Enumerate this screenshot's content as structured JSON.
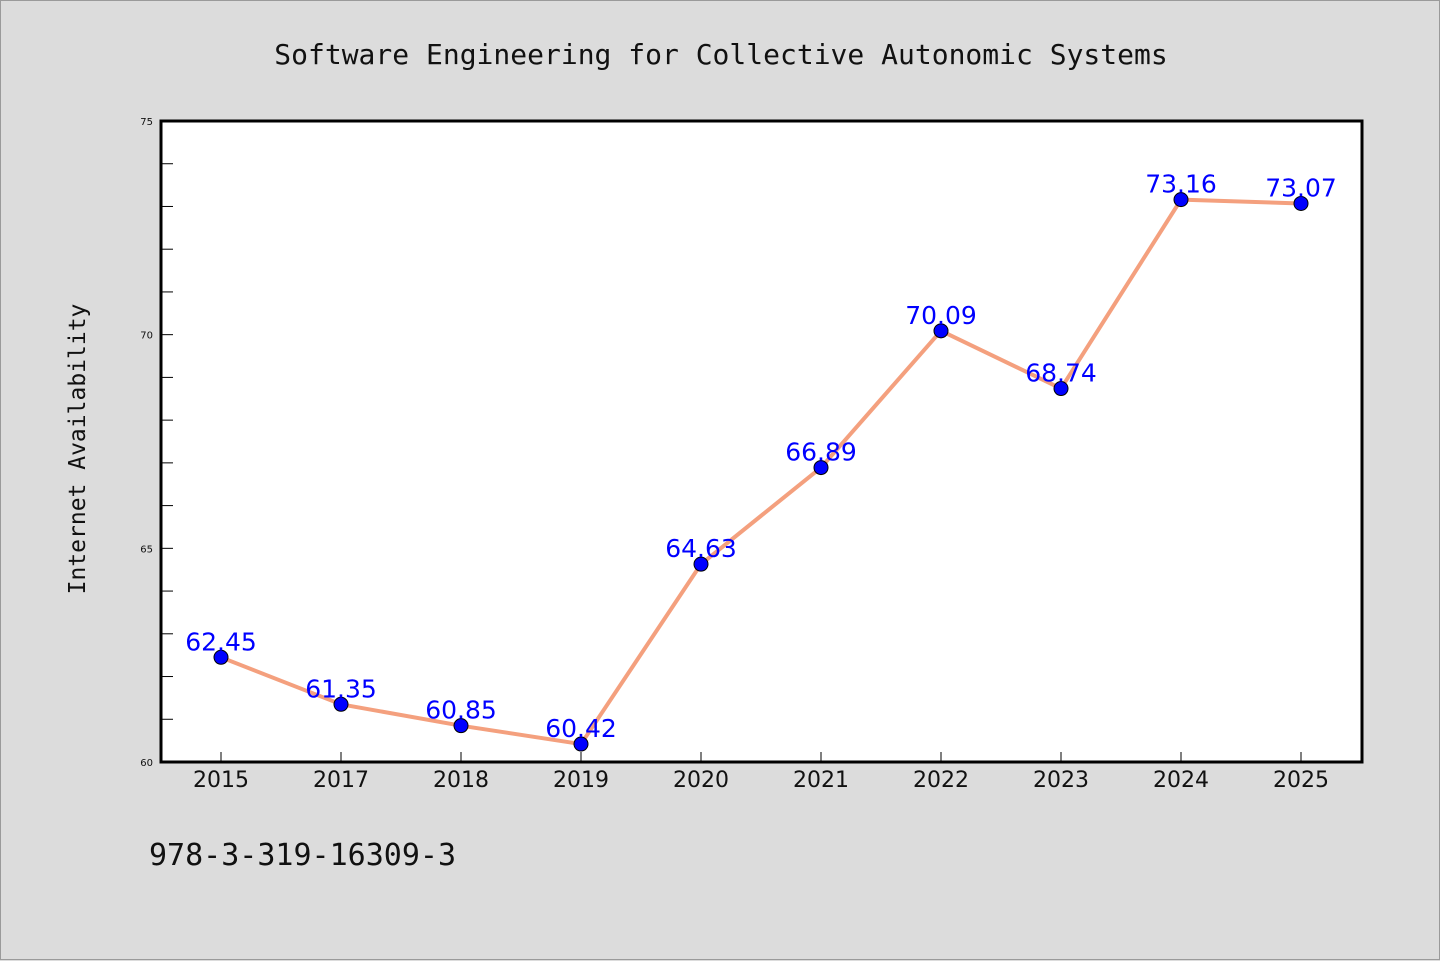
{
  "chart_data": {
    "type": "line",
    "title": "Software Engineering for Collective Autonomic Systems",
    "xlabel": "",
    "ylabel": "Internet Availability",
    "categories": [
      "2015",
      "2017",
      "2018",
      "2019",
      "2020",
      "2021",
      "2022",
      "2023",
      "2024",
      "2025"
    ],
    "series": [
      {
        "values": [
          62.45,
          61.35,
          60.85,
          60.42,
          64.63,
          66.89,
          70.09,
          68.74,
          73.16,
          73.07
        ],
        "data_labels": [
          "62.45",
          "61.35",
          "60.85",
          "60.42",
          "64.63",
          "66.89",
          "70.09",
          "68.74",
          "73.16",
          "73.07"
        ],
        "line_color": "#f4a07e",
        "marker_color": "#0000ff"
      }
    ],
    "ylim": [
      60,
      75
    ],
    "yticks": [
      "60",
      "65",
      "70",
      "75"
    ],
    "grid": false,
    "legend": "none"
  },
  "footer": {
    "text": "978-3-319-16309-3"
  },
  "colors": {
    "background": "#dcdcdc",
    "plot_background": "#ffffff",
    "label_color": "#0000ff"
  }
}
